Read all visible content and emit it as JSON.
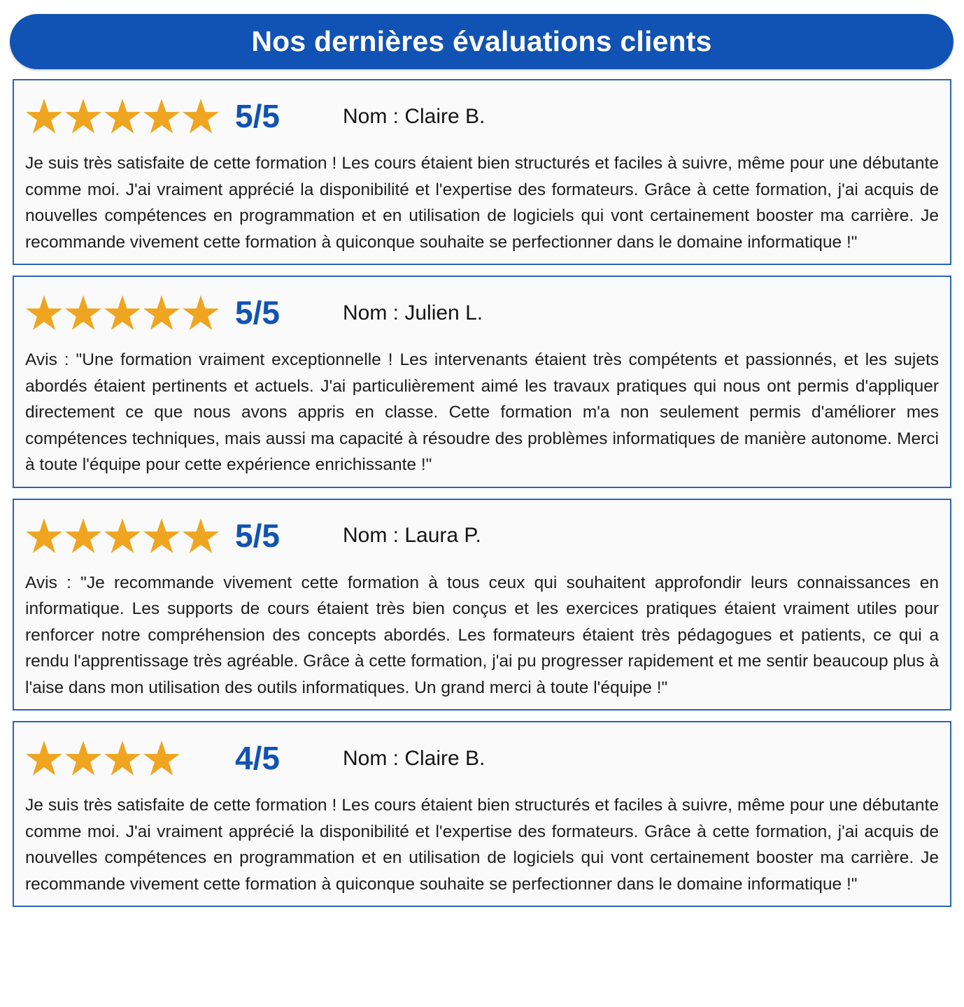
{
  "header": {
    "title": "Nos dernières évaluations clients"
  },
  "colors": {
    "primary_blue": "#1053b4",
    "card_border_blue": "#2a62bd",
    "star_gold": "#efa51f",
    "card_background": "#fafafa",
    "text_dark": "#1d1d1f",
    "title_white": "#ffffff"
  },
  "reviews": [
    {
      "stars": 5,
      "rating_label": "5/5",
      "name_label": "Nom : Claire B.",
      "review_text": "Je suis très satisfaite de cette formation ! Les cours étaient bien structurés et faciles à suivre, même pour une débutante comme moi. J'ai vraiment apprécié la disponibilité et l'expertise des formateurs. Grâce à cette formation, j'ai acquis de nouvelles compétences en programmation et en utilisation de logiciels qui vont certainement booster ma carrière. Je recommande vivement cette formation à quiconque souhaite se perfectionner dans le domaine informatique !\""
    },
    {
      "stars": 5,
      "rating_label": "5/5",
      "name_label": "Nom : Julien L.",
      "review_text": "Avis : \"Une formation vraiment exceptionnelle ! Les intervenants étaient très compétents et passionnés, et les sujets abordés étaient pertinents et actuels. J'ai particulièrement aimé les travaux pratiques qui nous ont permis d'appliquer directement ce que nous avons appris en classe. Cette formation m'a non seulement permis d'améliorer mes compétences techniques, mais aussi ma capacité à résoudre des problèmes informatiques de manière autonome. Merci à toute l'équipe pour cette expérience enrichissante !\""
    },
    {
      "stars": 5,
      "rating_label": "5/5",
      "name_label": "Nom : Laura P.",
      "review_text": "Avis : \"Je recommande vivement cette formation à tous ceux qui souhaitent approfondir leurs connaissances en informatique. Les supports de cours étaient très bien conçus et les exercices pratiques étaient vraiment utiles pour renforcer notre compréhension des concepts abordés. Les formateurs étaient très pédagogues et patients, ce qui a rendu l'apprentissage très agréable. Grâce à cette formation, j'ai pu progresser rapidement et me sentir beaucoup plus à l'aise dans mon utilisation des outils informatiques. Un grand merci à toute l'équipe !\""
    },
    {
      "stars": 4,
      "rating_label": "4/5",
      "name_label": "Nom : Claire B.",
      "review_text": "Je suis très satisfaite de cette formation ! Les cours étaient bien structurés et faciles à suivre, même pour une débutante comme moi. J'ai vraiment apprécié la disponibilité et l'expertise des formateurs. Grâce à cette formation, j'ai acquis de nouvelles compétences en programmation et en utilisation de logiciels qui vont certainement booster ma carrière. Je recommande vivement cette formation à quiconque souhaite se perfectionner dans le domaine informatique !\""
    }
  ]
}
